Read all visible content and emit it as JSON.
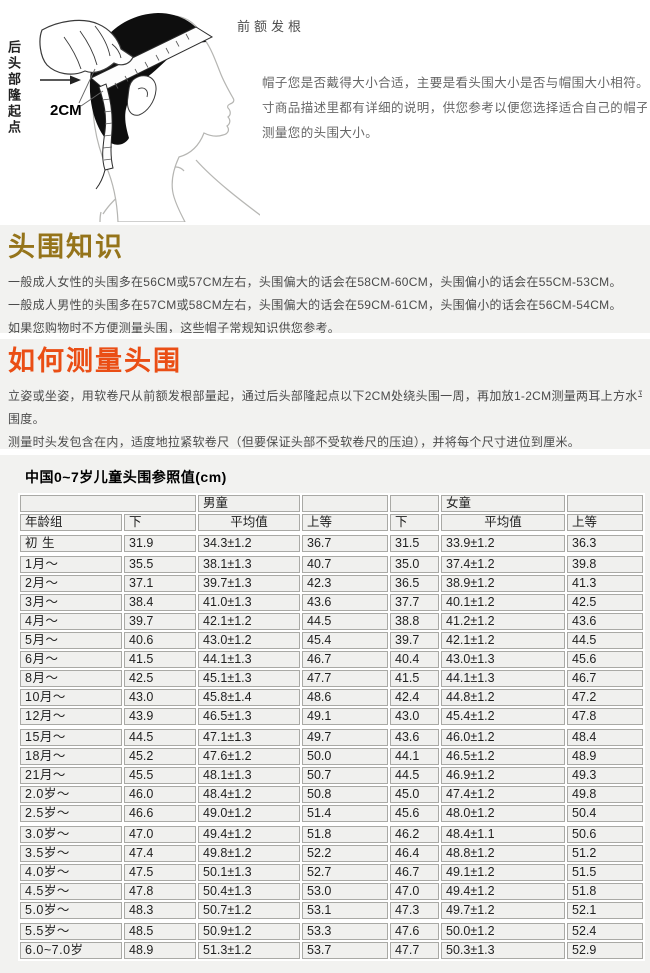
{
  "colors": {
    "band_background": "#f2f2f0",
    "knowledge_heading": "#95741a",
    "measure_heading": "#ea4e15",
    "table_border": "#a9a9a5",
    "table_cell_background": "#f0f0ee"
  },
  "illustration": {
    "front_hairline_label": "前额发根",
    "back_head_label": "后头部隆起点",
    "tape_offset_label": "2CM"
  },
  "intro": {
    "lines": [
      "帽子您是否戴得大小合适，主要是看头围大小是否与帽围大小相符。帽子相关尺",
      "寸商品描述里都有详细的说明，供您参考以便您选择适合自己的帽子。请您正确",
      "测量您的头围大小。"
    ]
  },
  "sections": {
    "knowledge": {
      "title": "头围知识",
      "lines": [
        "一般成人女性的头围多在56CM或57CM左右，头围偏大的话会在58CM-60CM，头围偏小的话会在55CM-53CM。",
        "一般成人男性的头围多在57CM或58CM左右，头围偏大的话会在59CM-61CM，头围偏小的话会在56CM-54CM。",
        "如果您购物时不方便测量头围，这些帽子常规知识供您参考。"
      ]
    },
    "measure": {
      "title": "如何测量头围",
      "lines": [
        "立姿或坐姿，用软卷尺从前额发根部量起，通过后头部隆起点以下2CM处绕头围一周，再加放1-2CM测量两耳上方水平所得的头部最大",
        "围度。",
        "测量时头发包含在内，适度地拉紧软卷尺（但要保证头部不受软卷尺的压迫），并将每个尺寸进位到厘米。"
      ]
    }
  },
  "table": {
    "title": "中国0~7岁儿童头围参照值(cm)",
    "boys_label": "男童",
    "girls_label": "女童",
    "columns": [
      "年龄组",
      "下",
      "平均值",
      "上等",
      "下",
      "平均值",
      "上等"
    ],
    "groups": [
      [
        [
          "初 生",
          "31.9",
          "34.3±1.2",
          "36.7",
          "31.5",
          "33.9±1.2",
          "36.3"
        ]
      ],
      [
        [
          "1月～",
          "35.5",
          "38.1±1.3",
          "40.7",
          "35.0",
          "37.4±1.2",
          "39.8"
        ],
        [
          "2月～",
          "37.1",
          "39.7±1.3",
          "42.3",
          "36.5",
          "38.9±1.2",
          "41.3"
        ],
        [
          "3月～",
          "38.4",
          "41.0±1.3",
          "43.6",
          "37.7",
          "40.1±1.2",
          "42.5"
        ],
        [
          "4月～",
          "39.7",
          "42.1±1.2",
          "44.5",
          "38.8",
          "41.2±1.2",
          "43.6"
        ],
        [
          "5月～",
          "40.6",
          "43.0±1.2",
          "45.4",
          "39.7",
          "42.1±1.2",
          "44.5"
        ],
        [
          "6月～",
          "41.5",
          "44.1±1.3",
          "46.7",
          "40.4",
          "43.0±1.3",
          "45.6"
        ],
        [
          "8月～",
          "42.5",
          "45.1±1.3",
          "47.7",
          "41.5",
          "44.1±1.3",
          "46.7"
        ],
        [
          "10月～",
          "43.0",
          "45.8±1.4",
          "48.6",
          "42.4",
          "44.8±1.2",
          "47.2"
        ],
        [
          "12月～",
          "43.9",
          "46.5±1.3",
          "49.1",
          "43.0",
          "45.4±1.2",
          "47.8"
        ]
      ],
      [
        [
          "15月～",
          "44.5",
          "47.1±1.3",
          "49.7",
          "43.6",
          "46.0±1.2",
          "48.4"
        ],
        [
          "18月～",
          "45.2",
          "47.6±1.2",
          "50.0",
          "44.1",
          "46.5±1.2",
          "48.9"
        ],
        [
          "21月～",
          "45.5",
          "48.1±1.3",
          "50.7",
          "44.5",
          "46.9±1.2",
          "49.3"
        ],
        [
          "2.0岁～",
          "46.0",
          "48.4±1.2",
          "50.8",
          "45.0",
          "47.4±1.2",
          "49.8"
        ],
        [
          "2.5岁～",
          "46.6",
          "49.0±1.2",
          "51.4",
          "45.6",
          "48.0±1.2",
          "50.4"
        ]
      ],
      [
        [
          "3.0岁～",
          "47.0",
          "49.4±1.2",
          "51.8",
          "46.2",
          "48.4±1.1",
          "50.6"
        ],
        [
          "3.5岁～",
          "47.4",
          "49.8±1.2",
          "52.2",
          "46.4",
          "48.8±1.2",
          "51.2"
        ],
        [
          "4.0岁～",
          "47.5",
          "50.1±1.3",
          "52.7",
          "46.7",
          "49.1±1.2",
          "51.5"
        ],
        [
          "4.5岁～",
          "47.8",
          "50.4±1.3",
          "53.0",
          "47.0",
          "49.4±1.2",
          "51.8"
        ],
        [
          "5.0岁～",
          "48.3",
          "50.7±1.2",
          "53.1",
          "47.3",
          "49.7±1.2",
          "52.1"
        ]
      ],
      [
        [
          "5.5岁～",
          "48.5",
          "50.9±1.2",
          "53.3",
          "47.6",
          "50.0±1.2",
          "52.4"
        ],
        [
          "6.0~7.0岁",
          "48.9",
          "51.3±1.2",
          "53.7",
          "47.7",
          "50.3±1.3",
          "52.9"
        ]
      ]
    ]
  }
}
